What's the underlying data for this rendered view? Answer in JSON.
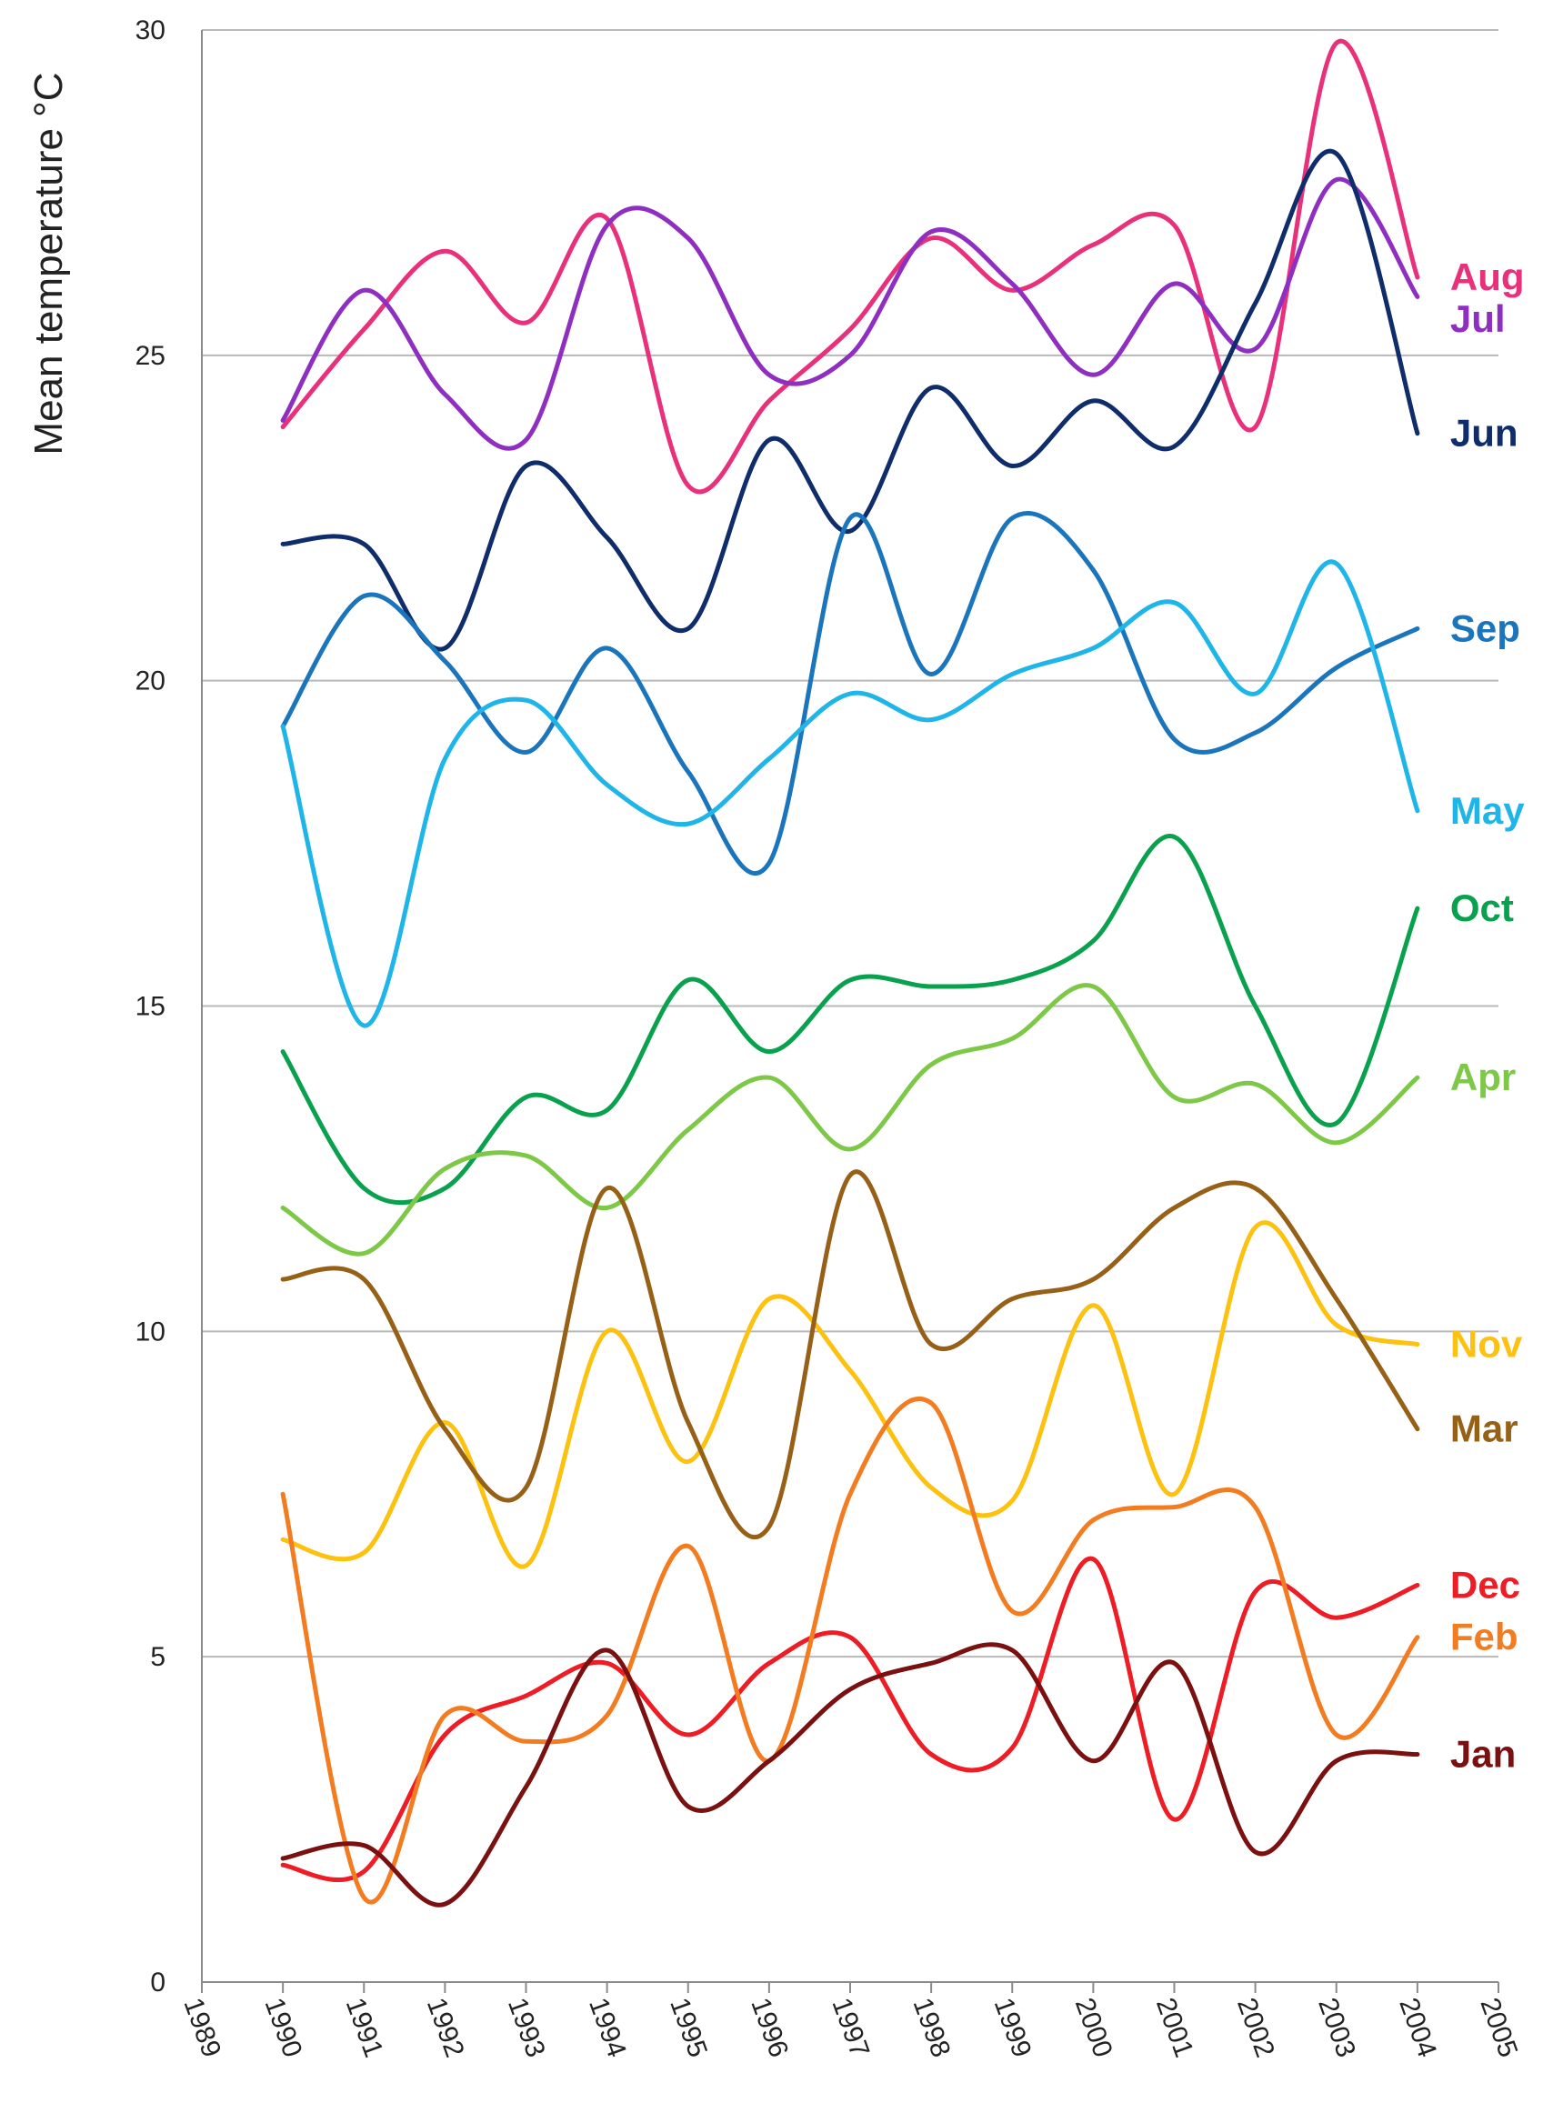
{
  "chart_data": {
    "type": "line",
    "title": "",
    "xlabel": "",
    "ylabel": "Mean temperature °C",
    "xlim": [
      1989,
      2005
    ],
    "ylim": [
      0,
      30
    ],
    "grid": true,
    "x_ticks": [
      "1989",
      "1990",
      "1991",
      "1992",
      "1993",
      "1994",
      "1995",
      "1996",
      "1997",
      "1998",
      "1999",
      "2000",
      "2001",
      "2002",
      "2003",
      "2004",
      "2005"
    ],
    "y_ticks": [
      "0",
      "5",
      "10",
      "15",
      "20",
      "25",
      "30"
    ],
    "x": [
      1990,
      1991,
      1992,
      1993,
      1994,
      1995,
      1996,
      1997,
      1998,
      1999,
      2000,
      2001,
      2002,
      2003,
      2004
    ],
    "series": [
      {
        "name": "Aug",
        "color": "#e8317a",
        "values": [
          23.9,
          25.4,
          26.6,
          25.5,
          27.1,
          23.0,
          24.3,
          25.4,
          26.8,
          26.0,
          26.7,
          27.0,
          23.9,
          29.8,
          26.2
        ]
      },
      {
        "name": "Jul",
        "color": "#8e2fc2",
        "values": [
          24.0,
          26.0,
          24.4,
          23.7,
          27.0,
          26.8,
          24.7,
          25.0,
          26.9,
          26.1,
          24.7,
          26.1,
          25.1,
          27.7,
          25.9
        ]
      },
      {
        "name": "Jun",
        "color": "#0f2d6b",
        "values": [
          22.1,
          22.1,
          20.5,
          23.3,
          22.2,
          20.8,
          23.7,
          22.3,
          24.5,
          23.3,
          24.3,
          23.6,
          25.8,
          28.1,
          23.8
        ]
      },
      {
        "name": "Sep",
        "color": "#1b75bc",
        "values": [
          19.3,
          21.3,
          20.3,
          18.9,
          20.5,
          18.6,
          17.2,
          22.5,
          20.1,
          22.5,
          21.7,
          19.1,
          19.2,
          20.2,
          20.8
        ]
      },
      {
        "name": "May",
        "color": "#1fb5e8",
        "values": [
          19.3,
          14.7,
          18.8,
          19.7,
          18.4,
          17.8,
          18.8,
          19.8,
          19.4,
          20.1,
          20.5,
          21.2,
          19.8,
          21.8,
          18.0
        ]
      },
      {
        "name": "Oct",
        "color": "#0aa14e",
        "values": [
          14.3,
          12.2,
          12.2,
          13.6,
          13.4,
          15.4,
          14.3,
          15.4,
          15.3,
          15.4,
          16.0,
          17.6,
          15.0,
          13.2,
          16.5
        ]
      },
      {
        "name": "Apr",
        "color": "#7dc847",
        "values": [
          11.9,
          11.2,
          12.5,
          12.7,
          11.9,
          13.1,
          13.9,
          12.8,
          14.1,
          14.5,
          15.3,
          13.6,
          13.8,
          12.9,
          13.9
        ]
      },
      {
        "name": "Nov",
        "color": "#fdc110",
        "values": [
          6.8,
          6.6,
          8.6,
          6.4,
          10.0,
          8.0,
          10.5,
          9.4,
          7.6,
          7.4,
          10.4,
          7.5,
          11.6,
          10.1,
          9.8
        ]
      },
      {
        "name": "Mar",
        "color": "#976017",
        "values": [
          10.8,
          10.8,
          8.5,
          7.6,
          12.2,
          8.6,
          7.0,
          12.4,
          9.8,
          10.5,
          10.8,
          11.9,
          12.2,
          10.5,
          8.5
        ]
      },
      {
        "name": "Dec",
        "color": "#ee1c24",
        "values": [
          1.8,
          1.7,
          3.8,
          4.4,
          4.9,
          3.8,
          4.9,
          5.3,
          3.5,
          3.6,
          6.5,
          2.5,
          6.0,
          5.6,
          6.1
        ]
      },
      {
        "name": "Feb",
        "color": "#f37c20",
        "values": [
          7.5,
          1.3,
          4.1,
          3.7,
          4.1,
          6.7,
          3.4,
          7.5,
          8.9,
          5.7,
          7.1,
          7.3,
          7.3,
          3.8,
          5.3
        ]
      },
      {
        "name": "Jan",
        "color": "#7a1010",
        "values": [
          1.9,
          2.1,
          1.2,
          3.0,
          5.1,
          2.7,
          3.4,
          4.5,
          4.9,
          5.1,
          3.4,
          4.9,
          2.0,
          3.4,
          3.5
        ]
      }
    ],
    "legend_position": "right-inline"
  }
}
